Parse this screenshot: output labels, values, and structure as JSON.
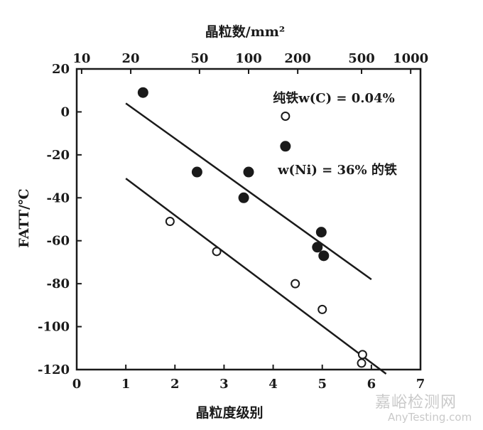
{
  "chart_data": {
    "type": "scatter",
    "title": "",
    "xlabel": "晶粒度级别",
    "ylabel": "FATT/℃",
    "top_xlabel": "晶粒数/mm²",
    "xlim": [
      0,
      7
    ],
    "ylim": [
      -120,
      20
    ],
    "x_ticks": [
      "0",
      "1",
      "2",
      "3",
      "4",
      "5",
      "6",
      "7"
    ],
    "y_ticks": [
      "20",
      "0",
      "-20",
      "-40",
      "-60",
      "-80",
      "-100",
      "-120"
    ],
    "top_ticks": [
      {
        "label": "10",
        "x": 0.1
      },
      {
        "label": "20",
        "x": 1.1
      },
      {
        "label": "50",
        "x": 2.5
      },
      {
        "label": "100",
        "x": 3.5
      },
      {
        "label": "200",
        "x": 4.5
      },
      {
        "label": "500",
        "x": 5.8
      },
      {
        "label": "1000",
        "x": 6.8
      }
    ],
    "series": [
      {
        "name": "纯铁w(C) = 0.04%",
        "marker": "filled",
        "points": [
          [
            1.35,
            9
          ],
          [
            2.45,
            -28
          ],
          [
            3.4,
            -40
          ],
          [
            3.5,
            -28
          ],
          [
            4.25,
            -16
          ],
          [
            4.9,
            -63
          ],
          [
            4.98,
            -56
          ],
          [
            5.03,
            -67
          ]
        ],
        "fit": [
          [
            1.0,
            4
          ],
          [
            6.0,
            -78
          ]
        ]
      },
      {
        "name": "w(Ni) = 36% 的铁",
        "marker": "open",
        "points": [
          [
            4.25,
            -2
          ],
          [
            1.9,
            -51
          ],
          [
            2.85,
            -65
          ],
          [
            4.45,
            -80
          ],
          [
            5.0,
            -92
          ],
          [
            5.82,
            -113
          ],
          [
            5.8,
            -117
          ]
        ],
        "fit": [
          [
            1.0,
            -31
          ],
          [
            6.3,
            -122
          ]
        ]
      }
    ]
  },
  "watermark": {
    "cn": "嘉峪检测网",
    "en": "AnyTesting.com"
  }
}
